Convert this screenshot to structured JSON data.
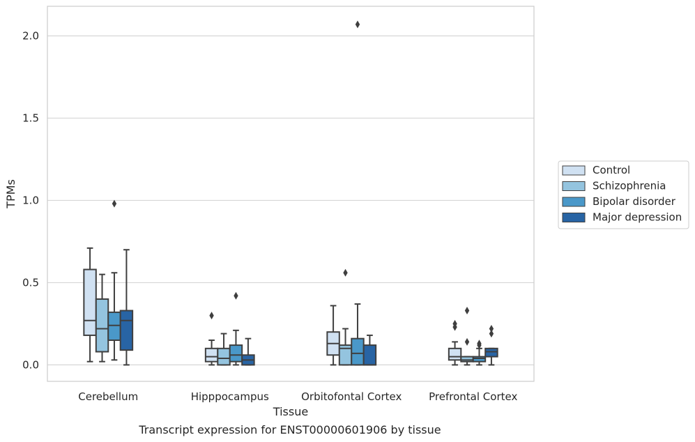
{
  "chart_data": {
    "type": "box",
    "xlabel": "Tissue",
    "ylabel": "TPMs",
    "caption": "Transcript expression for ENST00000601906 by tissue",
    "ylim": [
      -0.1,
      2.18
    ],
    "yticks": [
      0.0,
      0.5,
      1.0,
      1.5,
      2.0
    ],
    "ytick_labels": [
      "0.0",
      "0.5",
      "1.0",
      "1.5",
      "2.0"
    ],
    "grid": "horizontal",
    "legend_position": "right",
    "categories": [
      "Cerebellum",
      "Hipppocampus",
      "Orbitofontal Cortex",
      "Prefrontal Cortex"
    ],
    "series": [
      {
        "name": "Control",
        "color": "#d0e1f2",
        "boxes": [
          {
            "whislo": 0.02,
            "q1": 0.18,
            "med": 0.27,
            "q3": 0.58,
            "whishi": 0.71,
            "fliers": []
          },
          {
            "whislo": 0.0,
            "q1": 0.02,
            "med": 0.05,
            "q3": 0.1,
            "whishi": 0.15,
            "fliers": [
              0.3
            ]
          },
          {
            "whislo": 0.0,
            "q1": 0.06,
            "med": 0.13,
            "q3": 0.2,
            "whishi": 0.36,
            "fliers": []
          },
          {
            "whislo": 0.0,
            "q1": 0.03,
            "med": 0.05,
            "q3": 0.1,
            "whishi": 0.14,
            "fliers": [
              0.23,
              0.25
            ]
          }
        ]
      },
      {
        "name": "Schizophrenia",
        "color": "#94c4df",
        "boxes": [
          {
            "whislo": 0.02,
            "q1": 0.08,
            "med": 0.22,
            "q3": 0.4,
            "whishi": 0.55,
            "fliers": []
          },
          {
            "whislo": 0.0,
            "q1": 0.0,
            "med": 0.04,
            "q3": 0.1,
            "whishi": 0.19,
            "fliers": []
          },
          {
            "whislo": 0.0,
            "q1": 0.0,
            "med": 0.1,
            "q3": 0.12,
            "whishi": 0.22,
            "fliers": [
              0.56
            ]
          },
          {
            "whislo": 0.0,
            "q1": 0.02,
            "med": 0.03,
            "q3": 0.05,
            "whishi": 0.05,
            "fliers": [
              0.14,
              0.33
            ]
          }
        ]
      },
      {
        "name": "Bipolar disorder",
        "color": "#4a98c9",
        "boxes": [
          {
            "whislo": 0.03,
            "q1": 0.15,
            "med": 0.24,
            "q3": 0.32,
            "whishi": 0.56,
            "fliers": [
              0.98
            ]
          },
          {
            "whislo": 0.0,
            "q1": 0.02,
            "med": 0.06,
            "q3": 0.12,
            "whishi": 0.21,
            "fliers": [
              0.42
            ]
          },
          {
            "whislo": 0.0,
            "q1": 0.0,
            "med": 0.07,
            "q3": 0.16,
            "whishi": 0.37,
            "fliers": [
              2.07
            ]
          },
          {
            "whislo": 0.0,
            "q1": 0.02,
            "med": 0.04,
            "q3": 0.05,
            "whishi": 0.1,
            "fliers": [
              0.12,
              0.13
            ]
          }
        ]
      },
      {
        "name": "Major depression",
        "color": "#2864a4",
        "boxes": [
          {
            "whislo": 0.0,
            "q1": 0.09,
            "med": 0.27,
            "q3": 0.33,
            "whishi": 0.7,
            "fliers": []
          },
          {
            "whislo": 0.0,
            "q1": 0.0,
            "med": 0.03,
            "q3": 0.06,
            "whishi": 0.16,
            "fliers": []
          },
          {
            "whislo": 0.0,
            "q1": 0.0,
            "med": 0.0,
            "q3": 0.12,
            "whishi": 0.18,
            "fliers": []
          },
          {
            "whislo": 0.0,
            "q1": 0.05,
            "med": 0.08,
            "q3": 0.1,
            "whishi": 0.1,
            "fliers": [
              0.19,
              0.22
            ]
          }
        ]
      }
    ]
  }
}
